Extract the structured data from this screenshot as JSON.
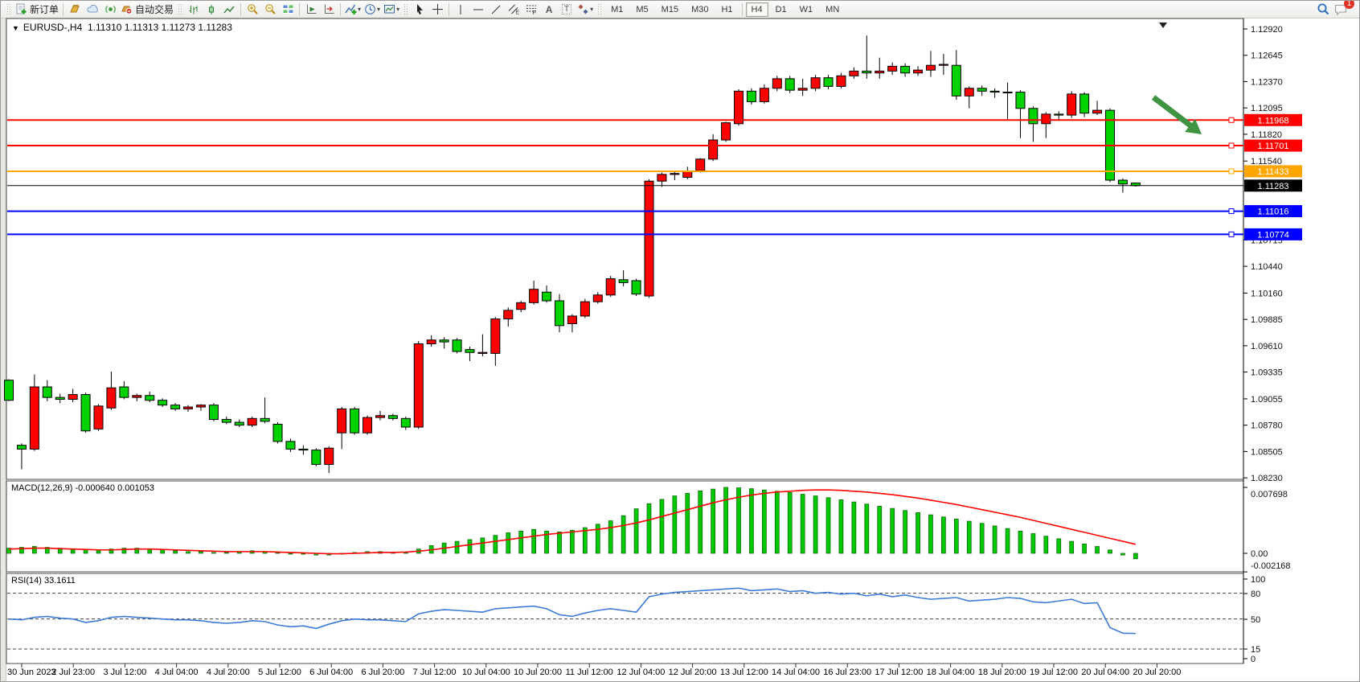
{
  "window": {
    "symbol_title": "EURUSD-,H4",
    "quote_ohlc": "1.11310 1.11313 1.11273 1.11283"
  },
  "toolbar": {
    "new_order": "新订单",
    "auto_trading": "自动交易",
    "timeframes": [
      "M1",
      "M5",
      "M15",
      "M30",
      "H1",
      "H4",
      "D1",
      "W1",
      "MN"
    ],
    "active_timeframe": "H4",
    "unread_count": "1",
    "icons": [
      "new-order",
      "gold",
      "cloud",
      "signal",
      "auto-trading",
      "bar-chart",
      "candlestick-chart",
      "line-chart",
      "zoom-in",
      "zoom-out",
      "tile-windows",
      "auto-scroll",
      "chart-shift",
      "indicators",
      "periods-clock",
      "templates",
      "cursor",
      "crosshair",
      "vertical-line",
      "horizontal-line",
      "trendline",
      "equidistant-channel",
      "fibonacci",
      "text",
      "text-label",
      "arrows",
      "search",
      "chat"
    ]
  },
  "indicators": {
    "macd_label": "MACD(12,26,9) -0.000640 0.001053",
    "rsi_label": "RSI(14) 33.1611"
  },
  "chart_data": {
    "type": "candlestick",
    "symbol": "EURUSD-",
    "timeframe": "H4",
    "current_quote": {
      "open": 1.1131,
      "high": 1.11313,
      "low": 1.11273,
      "close": 1.11283
    },
    "colors": {
      "bull": "#FF0000",
      "bear": "#00D200",
      "wick": "#000000",
      "macd_hist": "#00C800",
      "macd_signal": "#FF0000",
      "rsi_line": "#3C7CD4",
      "arrow": "#3E9441"
    },
    "price_axis": {
      "min": 1.0823,
      "max": 1.1292,
      "ticks": [
        "1.12920",
        "1.12645",
        "1.12370",
        "1.12095",
        "1.11820",
        "1.11540",
        "1.10715",
        "1.10440",
        "1.10160",
        "1.09885",
        "1.09610",
        "1.09335",
        "1.09055",
        "1.08780",
        "1.08505",
        "1.08230"
      ]
    },
    "hlines": [
      {
        "price": 1.11968,
        "label": "1.11968",
        "color": "#FF0000",
        "width": 2
      },
      {
        "price": 1.11701,
        "label": "1.11701",
        "color": "#FF0000",
        "width": 2
      },
      {
        "price": 1.11433,
        "label": "1.11433",
        "color": "#FFA500",
        "width": 2
      },
      {
        "price": 1.11283,
        "label": "1.11283",
        "color": "#000000",
        "width": 1
      },
      {
        "price": 1.11016,
        "label": "1.11016",
        "color": "#0000FF",
        "width": 2
      },
      {
        "price": 1.10774,
        "label": "1.10774",
        "color": "#0000FF",
        "width": 2
      }
    ],
    "candles": [
      [
        1.0925,
        1.0926,
        1.0903,
        1.0904
      ],
      [
        1.0857,
        1.0859,
        1.0832,
        1.0853
      ],
      [
        1.0853,
        1.0931,
        1.0851,
        1.0918
      ],
      [
        1.0918,
        1.0925,
        1.0903,
        1.0907
      ],
      [
        1.0907,
        1.0911,
        1.0901,
        1.0905
      ],
      [
        1.0905,
        1.0916,
        1.0902,
        1.091
      ],
      [
        1.091,
        1.0912,
        1.087,
        1.0872
      ],
      [
        1.0874,
        1.09,
        1.0872,
        1.0898
      ],
      [
        1.0896,
        1.0934,
        1.0894,
        1.0917
      ],
      [
        1.0918,
        1.0924,
        1.0905,
        1.0907
      ],
      [
        1.0907,
        1.0911,
        1.0903,
        1.0909
      ],
      [
        1.0909,
        1.0913,
        1.0902,
        1.0904
      ],
      [
        1.0904,
        1.0906,
        1.0897,
        1.0899
      ],
      [
        1.0899,
        1.0901,
        1.0893,
        1.0895
      ],
      [
        1.0895,
        1.0899,
        1.0892,
        1.0897
      ],
      [
        1.0897,
        1.09,
        1.0893,
        1.0899
      ],
      [
        1.0899,
        1.0901,
        1.0882,
        1.0884
      ],
      [
        1.0884,
        1.0887,
        1.0879,
        1.0881
      ],
      [
        1.0881,
        1.0884,
        1.0876,
        1.0878
      ],
      [
        1.0878,
        1.0887,
        1.0876,
        1.0885
      ],
      [
        1.0885,
        1.0907,
        1.088,
        1.0882
      ],
      [
        1.0879,
        1.0881,
        1.0859,
        1.0861
      ],
      [
        1.0861,
        1.0864,
        1.085,
        1.0853
      ],
      [
        1.0853,
        1.0857,
        1.0847,
        1.0852
      ],
      [
        1.0852,
        1.0854,
        1.0835,
        1.0837
      ],
      [
        1.0837,
        1.0856,
        1.0828,
        1.0854
      ],
      [
        1.087,
        1.0897,
        1.0853,
        1.0895
      ],
      [
        1.0895,
        1.0897,
        1.0868,
        1.087
      ],
      [
        1.087,
        1.0888,
        1.0868,
        1.0886
      ],
      [
        1.0886,
        1.0893,
        1.0883,
        1.0888
      ],
      [
        1.0888,
        1.089,
        1.0883,
        1.0885
      ],
      [
        1.0885,
        1.0887,
        1.0873,
        1.0876
      ],
      [
        1.0876,
        1.0966,
        1.0874,
        1.0963
      ],
      [
        1.0963,
        1.0972,
        1.096,
        1.0967
      ],
      [
        1.0967,
        1.097,
        1.0958,
        1.0965
      ],
      [
        1.0967,
        1.0969,
        1.0953,
        1.0955
      ],
      [
        1.0957,
        1.096,
        1.0945,
        1.0954
      ],
      [
        1.0953,
        1.0973,
        1.095,
        1.0954
      ],
      [
        1.0953,
        1.0991,
        1.094,
        1.0989
      ],
      [
        1.0989,
        1.1001,
        1.0981,
        1.0998
      ],
      [
        1.0999,
        1.1008,
        1.0996,
        1.1006
      ],
      [
        1.1006,
        1.1029,
        1.1004,
        1.102
      ],
      [
        1.1017,
        1.1024,
        1.1006,
        1.1008
      ],
      [
        1.1008,
        1.1015,
        1.0975,
        1.0982
      ],
      [
        1.0984,
        1.0994,
        1.0975,
        1.0992
      ],
      [
        1.0992,
        1.101,
        1.099,
        1.1007
      ],
      [
        1.1007,
        1.1017,
        1.1005,
        1.1014
      ],
      [
        1.1014,
        1.1034,
        1.1012,
        1.1031
      ],
      [
        1.103,
        1.104,
        1.1023,
        1.1027
      ],
      [
        1.1029,
        1.1031,
        1.1013,
        1.1015
      ],
      [
        1.1013,
        1.1135,
        1.1011,
        1.1133
      ],
      [
        1.1133,
        1.1142,
        1.1127,
        1.114
      ],
      [
        1.114,
        1.1144,
        1.1134,
        1.1141
      ],
      [
        1.1137,
        1.1148,
        1.1135,
        1.1143
      ],
      [
        1.1144,
        1.1157,
        1.1142,
        1.1156
      ],
      [
        1.1156,
        1.1182,
        1.1154,
        1.1176
      ],
      [
        1.1176,
        1.1195,
        1.1174,
        1.1194
      ],
      [
        1.1193,
        1.1229,
        1.1191,
        1.1227
      ],
      [
        1.1227,
        1.123,
        1.1213,
        1.1216
      ],
      [
        1.1216,
        1.1234,
        1.1214,
        1.123
      ],
      [
        1.123,
        1.1243,
        1.1227,
        1.124
      ],
      [
        1.124,
        1.1243,
        1.1225,
        1.1228
      ],
      [
        1.1228,
        1.124,
        1.1222,
        1.123
      ],
      [
        1.123,
        1.1244,
        1.1227,
        1.1241
      ],
      [
        1.1241,
        1.1244,
        1.1229,
        1.1232
      ],
      [
        1.1232,
        1.1246,
        1.123,
        1.1243
      ],
      [
        1.1243,
        1.1252,
        1.124,
        1.1248
      ],
      [
        1.1248,
        1.1285,
        1.124,
        1.1246
      ],
      [
        1.1246,
        1.1262,
        1.124,
        1.1248
      ],
      [
        1.1248,
        1.1257,
        1.1244,
        1.1253
      ],
      [
        1.1253,
        1.1256,
        1.1242,
        1.1246
      ],
      [
        1.1246,
        1.1253,
        1.1243,
        1.1249
      ],
      [
        1.1249,
        1.1269,
        1.1242,
        1.1254
      ],
      [
        1.1254,
        1.1266,
        1.1244,
        1.1255
      ],
      [
        1.1254,
        1.127,
        1.1218,
        1.1222
      ],
      [
        1.1222,
        1.1232,
        1.1209,
        1.123
      ],
      [
        1.123,
        1.1233,
        1.1222,
        1.1227
      ],
      [
        1.1227,
        1.123,
        1.122,
        1.1226
      ],
      [
        1.1226,
        1.1236,
        1.1198,
        1.1226
      ],
      [
        1.1226,
        1.1228,
        1.1178,
        1.1209
      ],
      [
        1.1209,
        1.1211,
        1.1174,
        1.1193
      ],
      [
        1.1193,
        1.1205,
        1.1178,
        1.1203
      ],
      [
        1.1203,
        1.1206,
        1.1196,
        1.1202
      ],
      [
        1.1202,
        1.1227,
        1.1199,
        1.1224
      ],
      [
        1.1224,
        1.1226,
        1.12,
        1.1204
      ],
      [
        1.1204,
        1.1217,
        1.1202,
        1.1207
      ],
      [
        1.1207,
        1.1209,
        1.1132,
        1.1134
      ],
      [
        1.1134,
        1.1136,
        1.1121,
        1.113
      ],
      [
        1.1131,
        1.11313,
        1.11273,
        1.11283
      ]
    ],
    "macd": {
      "params": "12,26,9",
      "unit": 0.0001,
      "current_main": -0.00064,
      "current_signal": 0.001053,
      "axis_ticks": [
        {
          "label": "0.007698",
          "value": 76.98
        },
        {
          "label": "0.00",
          "value": 0
        },
        {
          "label": "-0.002168",
          "value": -21.68
        }
      ],
      "hist": [
        6,
        7,
        8,
        7,
        6,
        5,
        4,
        4,
        5,
        6,
        6,
        5,
        4,
        3,
        2,
        2,
        1,
        1,
        2,
        3,
        2,
        1,
        0,
        -1,
        -2,
        -2,
        0,
        1,
        2,
        2,
        1,
        1,
        5,
        9,
        12,
        14,
        16,
        18,
        21,
        24,
        26,
        28,
        26,
        25,
        27,
        30,
        34,
        38,
        44,
        52,
        58,
        63,
        67,
        70,
        73,
        75,
        77,
        76.5,
        75.5,
        74,
        72.5,
        71,
        69,
        67,
        65,
        62.5,
        60,
        57.5,
        55,
        52.5,
        50,
        47.5,
        45,
        42.5,
        40,
        37.5,
        35,
        32,
        29,
        26,
        23,
        20,
        17,
        14,
        11,
        8,
        4,
        -2,
        -6.4
      ],
      "signal": [
        5,
        5.5,
        6,
        6,
        5.5,
        5,
        4.5,
        4,
        4,
        4.5,
        5,
        5,
        4.5,
        4,
        3.5,
        3,
        2.5,
        2,
        2,
        2,
        2,
        1.5,
        1,
        0.5,
        0,
        -0.5,
        -0.5,
        0,
        0.5,
        1,
        1,
        1.5,
        2.5,
        4,
        6,
        8,
        10,
        12,
        14,
        16,
        18,
        20,
        22,
        23.5,
        25,
        26.5,
        28,
        30,
        32.5,
        35.5,
        39,
        43,
        47,
        51,
        55,
        59,
        62.5,
        65.5,
        68,
        70,
        71.5,
        72.5,
        73.5,
        74,
        74,
        73.5,
        72.5,
        71.5,
        70,
        68.5,
        66.5,
        64.5,
        62,
        59.5,
        57,
        54,
        51,
        48,
        45,
        42,
        38.5,
        35,
        31.5,
        28,
        24.5,
        21,
        17.5,
        14,
        10.5
      ]
    },
    "rsi": {
      "period": 14,
      "current": 33.1611,
      "levels": [
        80,
        50,
        15
      ],
      "axis_ticks": [
        "100",
        "80",
        "50",
        "15",
        "0"
      ],
      "values": [
        50,
        49,
        52,
        53,
        51,
        50,
        46,
        48,
        52,
        53,
        52,
        51,
        50,
        49,
        49,
        48,
        46,
        45,
        46,
        48,
        47,
        43,
        41,
        42,
        39,
        44,
        48,
        50,
        49,
        49,
        48,
        47,
        56,
        59,
        61,
        60,
        59,
        58,
        62,
        63,
        64,
        65,
        62,
        55,
        53,
        57,
        60,
        62,
        60,
        58,
        76,
        79,
        81,
        82,
        83,
        84,
        85,
        86,
        83,
        84,
        85,
        82,
        83,
        80,
        81,
        79,
        80,
        77,
        79,
        76,
        78,
        75,
        73,
        74,
        75,
        71,
        72,
        73,
        75,
        74,
        70,
        69,
        71,
        73,
        68,
        69,
        40,
        33.5,
        33.16
      ]
    },
    "time_axis": {
      "labels": [
        "30 Jun 2023",
        "2 Jul 23:00",
        "3 Jul 12:00",
        "4 Jul 04:00",
        "4 Jul 20:00",
        "5 Jul 12:00",
        "6 Jul 04:00",
        "6 Jul 20:00",
        "7 Jul 12:00",
        "10 Jul 04:00",
        "10 Jul 20:00",
        "11 Jul 12:00",
        "12 Jul 04:00",
        "12 Jul 20:00",
        "13 Jul 12:00",
        "14 Jul 04:00",
        "16 Jul 23:00",
        "17 Jul 12:00",
        "18 Jul 04:00",
        "18 Jul 20:00",
        "19 Jul 12:00",
        "20 Jul 04:00",
        "20 Jul 20:00"
      ]
    },
    "annotations": [
      {
        "type": "arrow",
        "direction": "down-right",
        "color": "#3E9441"
      }
    ]
  }
}
